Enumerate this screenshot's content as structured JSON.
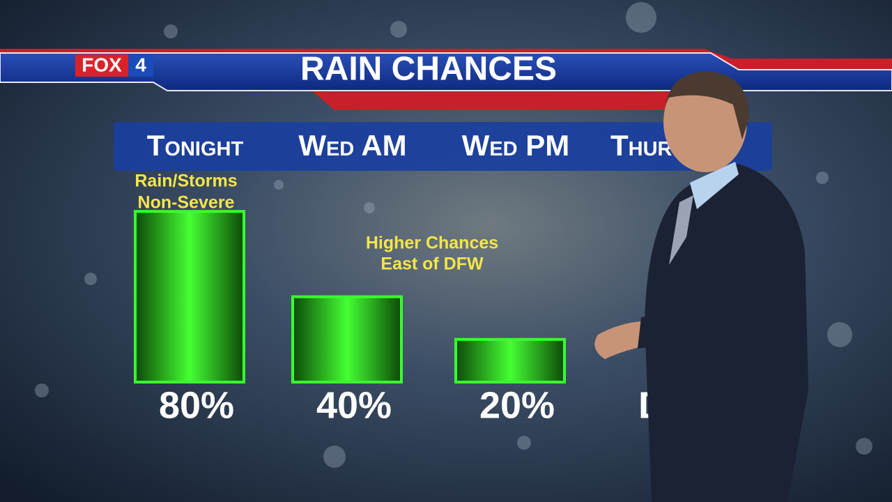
{
  "chart_data": {
    "type": "bar",
    "title": "RAIN CHANCES",
    "logo": {
      "brand": "FOX",
      "number": "4"
    },
    "categories": [
      "Tonight",
      "Wed AM",
      "Wed PM",
      "Thur"
    ],
    "values": [
      80,
      40,
      20,
      null
    ],
    "value_labels": [
      "80%",
      "40%",
      "20%",
      "D"
    ],
    "color": "#39ff2e",
    "ylim": [
      0,
      100
    ],
    "annotations": [
      {
        "lines": [
          "Rain/Storms",
          "Non-Severe"
        ]
      },
      {
        "lines": [
          "Higher Chances",
          "East of DFW"
        ]
      }
    ]
  }
}
